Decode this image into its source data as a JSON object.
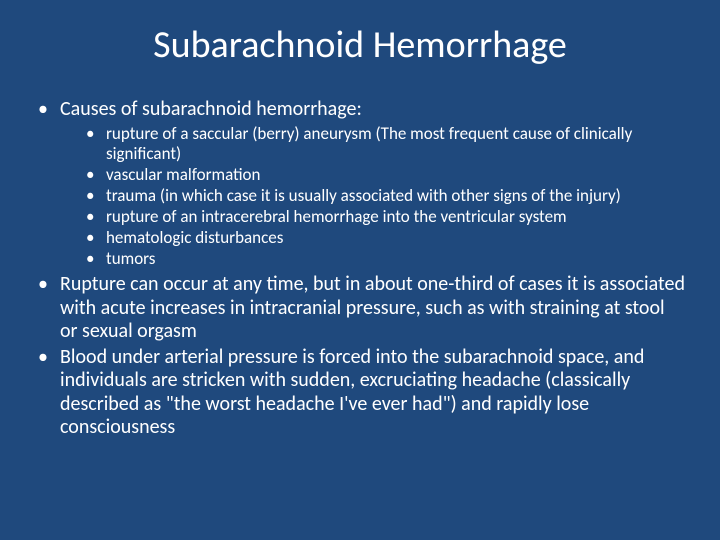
{
  "slide": {
    "background_color": "#1f497d",
    "text_color": "#ffffff",
    "title": {
      "text": "Subarachnoid Hemorrhage",
      "fontsize": 38,
      "align": "center"
    },
    "body_fontsize_level1": 20,
    "body_fontsize_level2": 17,
    "bullet_char": "•",
    "bullets": [
      {
        "text": "Causes of subarachnoid hemorrhage:",
        "children": [
          "rupture of a saccular (berry) aneurysm (The most frequent cause of clinically significant)",
          "vascular malformation",
          "trauma (in which case it is usually associated with other signs of the injury)",
          "rupture of an intracerebral hemorrhage into the ventricular system",
          "hematologic disturbances",
          "tumors"
        ]
      },
      {
        "text": "Rupture can occur at any time, but in about one-third of cases it is associated with acute increases in intracranial pressure, such as with straining at stool or sexual orgasm"
      },
      {
        "text": "Blood under arterial pressure is forced into the subarachnoid space, and individuals are stricken with sudden, excruciating headache (classically described as \"the worst headache I've ever had\") and rapidly lose consciousness"
      }
    ]
  }
}
